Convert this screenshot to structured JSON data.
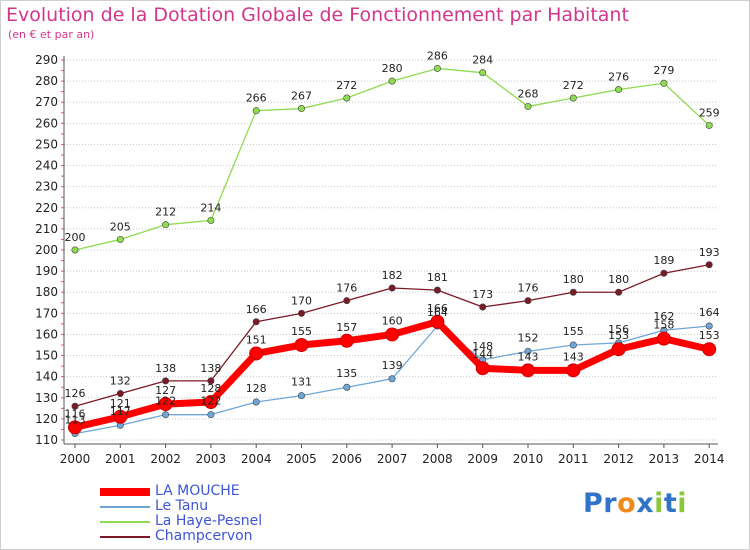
{
  "chart_data": {
    "type": "line",
    "title": "Evolution de la Dotation Globale de Fonctionnement par Habitant",
    "subtitle": "(en € et par an)",
    "categories": [
      "2000",
      "2001",
      "2002",
      "2003",
      "2004",
      "2005",
      "2006",
      "2007",
      "2008",
      "2009",
      "2010",
      "2011",
      "2012",
      "2013",
      "2014"
    ],
    "ylim": [
      110,
      290
    ],
    "yticks": [
      110,
      120,
      130,
      140,
      150,
      160,
      170,
      180,
      190,
      200,
      210,
      220,
      230,
      240,
      250,
      260,
      270,
      280,
      290
    ],
    "series": [
      {
        "name": "La Haye-Pesnel",
        "color": "#8fdc52",
        "values": [
          200,
          205,
          212,
          214,
          266,
          267,
          272,
          280,
          286,
          284,
          268,
          272,
          276,
          279,
          259
        ]
      },
      {
        "name": "Champcervon",
        "color": "#7b1a26",
        "values": [
          126,
          132,
          138,
          138,
          166,
          170,
          176,
          182,
          181,
          173,
          176,
          180,
          180,
          189,
          193
        ]
      },
      {
        "name": "Le Tanu",
        "color": "#6fa6d8",
        "values": [
          113,
          117,
          122,
          122,
          128,
          131,
          135,
          139,
          164,
          148,
          152,
          155,
          156,
          162,
          164
        ]
      },
      {
        "name": "LA MOUCHE",
        "color": "#ff0000",
        "values": [
          116,
          121,
          127,
          128,
          151,
          155,
          157,
          160,
          166,
          144,
          143,
          143,
          153,
          158,
          153
        ]
      }
    ],
    "labels": {
      "LA MOUCHE": [
        "116",
        "121",
        "127",
        "128",
        "151",
        "155",
        "157",
        "160",
        "166",
        "144",
        "143",
        "143",
        "153",
        "158",
        "153"
      ],
      "Le Tanu": [
        "113",
        "117",
        "122",
        "122",
        "128",
        "131",
        "135",
        "139",
        "164",
        "148",
        "152",
        "155",
        "156",
        "162",
        "164"
      ],
      "La Haye-Pesnel": [
        "200",
        "205",
        "212",
        "214",
        "266",
        "267",
        "272",
        "280",
        "286",
        "284",
        "268",
        "272",
        "276",
        "279",
        "259"
      ],
      "Champcervon": [
        "126",
        "132",
        "138",
        "138",
        "166",
        "170",
        "176",
        "182",
        "181",
        "173",
        "176",
        "180",
        "180",
        "189",
        "193"
      ]
    },
    "legend": [
      {
        "name": "LA MOUCHE",
        "color": "#ff0000"
      },
      {
        "name": "Le Tanu",
        "color": "#6fa6d8"
      },
      {
        "name": "La Haye-Pesnel",
        "color": "#8fdc52"
      },
      {
        "name": "Champcervon",
        "color": "#7b1a26"
      }
    ],
    "xlabel": "",
    "ylabel": "",
    "grid": "horizontal"
  },
  "logo": {
    "text": "Proxiti",
    "letters": [
      "P",
      "r",
      "o",
      "x",
      "i",
      "t",
      "i"
    ],
    "colors": [
      "#2f74c8",
      "#2f74c8",
      "#f08a1c",
      "#2f74c8",
      "#8cc63f",
      "#2f74c8",
      "#8cc63f"
    ]
  }
}
